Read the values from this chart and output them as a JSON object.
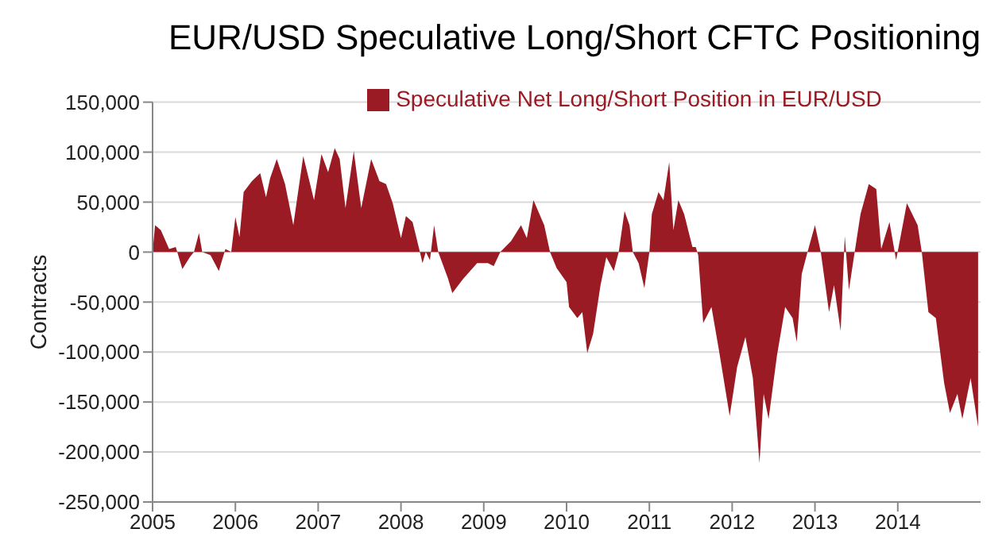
{
  "chart_data": {
    "type": "area",
    "title": "EUR/USD Speculative Long/Short CFTC Positioning",
    "ylabel": "Contracts",
    "x": [
      2005.0,
      2005.03,
      2005.1,
      2005.2,
      2005.28,
      2005.36,
      2005.45,
      2005.5,
      2005.56,
      2005.6,
      2005.7,
      2005.8,
      2005.88,
      2005.95,
      2006.0,
      2006.05,
      2006.1,
      2006.2,
      2006.3,
      2006.37,
      2006.42,
      2006.5,
      2006.6,
      2006.7,
      2006.82,
      2006.95,
      2007.04,
      2007.12,
      2007.2,
      2007.26,
      2007.33,
      2007.43,
      2007.52,
      2007.64,
      2007.74,
      2007.82,
      2007.9,
      2008.0,
      2008.06,
      2008.14,
      2008.22,
      2008.26,
      2008.3,
      2008.35,
      2008.4,
      2008.45,
      2008.57,
      2008.62,
      2008.75,
      2008.92,
      2009.05,
      2009.12,
      2009.2,
      2009.33,
      2009.45,
      2009.52,
      2009.6,
      2009.73,
      2009.8,
      2009.88,
      2010.0,
      2010.03,
      2010.13,
      2010.19,
      2010.25,
      2010.32,
      2010.41,
      2010.48,
      2010.57,
      2010.63,
      2010.7,
      2010.76,
      2010.8,
      2010.87,
      2010.94,
      2011.0,
      2011.03,
      2011.11,
      2011.17,
      2011.24,
      2011.29,
      2011.35,
      2011.42,
      2011.52,
      2011.56,
      2011.59,
      2011.65,
      2011.75,
      2011.84,
      2011.97,
      2012.06,
      2012.16,
      2012.25,
      2012.33,
      2012.38,
      2012.44,
      2012.54,
      2012.64,
      2012.73,
      2012.78,
      2012.84,
      2012.91,
      2013.0,
      2013.07,
      2013.17,
      2013.23,
      2013.31,
      2013.36,
      2013.41,
      2013.47,
      2013.55,
      2013.65,
      2013.74,
      2013.8,
      2013.9,
      2013.98,
      2014.11,
      2014.24,
      2014.29,
      2014.37,
      2014.46,
      2014.56,
      2014.63,
      2014.72,
      2014.78,
      2014.88,
      2014.97
    ],
    "series": [
      {
        "name": "Speculative Net Long/Short Position in EUR/USD",
        "color": "#9b1b24",
        "values": [
          0,
          27000,
          22000,
          3000,
          5000,
          -17000,
          -5000,
          0,
          19000,
          0,
          -3000,
          -19000,
          3000,
          0,
          35000,
          15000,
          60000,
          71000,
          79000,
          55000,
          74000,
          93000,
          68000,
          27000,
          96000,
          52000,
          98000,
          80000,
          104000,
          93000,
          44000,
          101000,
          44000,
          93000,
          71000,
          68000,
          49000,
          14000,
          36000,
          30000,
          3000,
          -11000,
          0,
          -8000,
          27000,
          0,
          -27000,
          -41000,
          -27000,
          -11000,
          -11000,
          -14000,
          0,
          11000,
          27000,
          14000,
          52000,
          27000,
          0,
          -16000,
          -30000,
          -55000,
          -66000,
          -60000,
          -101000,
          -82000,
          -33000,
          -5000,
          -19000,
          0,
          41000,
          27000,
          0,
          -11000,
          -36000,
          0,
          38000,
          60000,
          52000,
          90000,
          22000,
          52000,
          38000,
          5000,
          5000,
          -3000,
          -71000,
          -55000,
          -98000,
          -164000,
          -115000,
          -85000,
          -126000,
          -211000,
          -142000,
          -167000,
          -104000,
          -55000,
          -66000,
          -90000,
          -22000,
          0,
          27000,
          0,
          -60000,
          -33000,
          -79000,
          16000,
          -38000,
          -5000,
          38000,
          68000,
          63000,
          3000,
          30000,
          -8000,
          49000,
          27000,
          0,
          -60000,
          -66000,
          -131000,
          -161000,
          -142000,
          -167000,
          -126000,
          -175000
        ]
      }
    ],
    "xlim": [
      2005,
      2015
    ],
    "xticks": [
      2005,
      2006,
      2007,
      2008,
      2009,
      2010,
      2011,
      2012,
      2013,
      2014
    ],
    "ylim": [
      -250000,
      150000
    ],
    "yticks": [
      {
        "value": -250000,
        "label": "-250,000"
      },
      {
        "value": -200000,
        "label": "-200,000"
      },
      {
        "value": -150000,
        "label": "-150,000"
      },
      {
        "value": -100000,
        "label": "-100,000"
      },
      {
        "value": -50000,
        "label": "-50,000"
      },
      {
        "value": 0,
        "label": "0"
      },
      {
        "value": 50000,
        "label": "50,000"
      },
      {
        "value": 100000,
        "label": "100,000"
      },
      {
        "value": 150000,
        "label": "150,000"
      }
    ],
    "grid": "y",
    "legend": "top"
  }
}
